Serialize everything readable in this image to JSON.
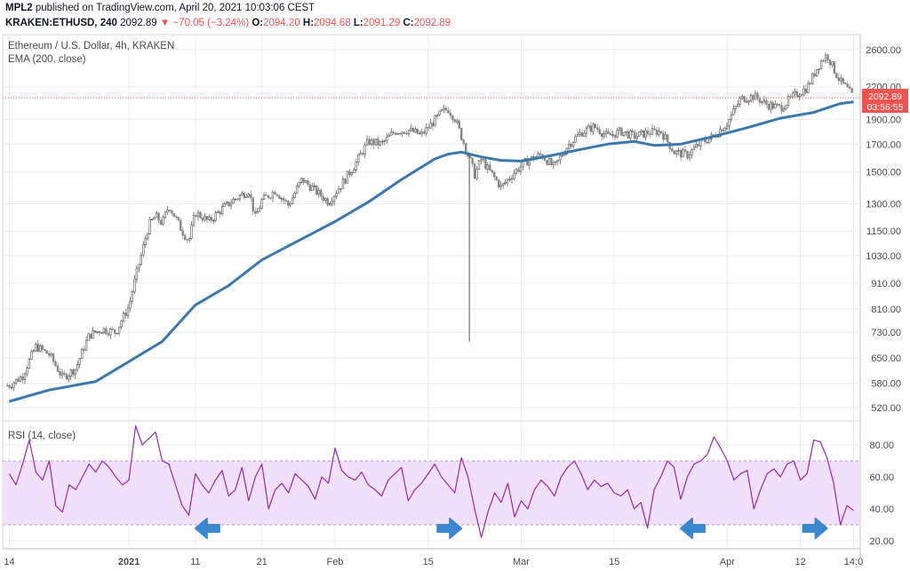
{
  "header": {
    "publisher": "MPL2",
    "published_text": "published on TradingView.com, April 20, 2021 10:03:06 CEST",
    "symbol": "KRAKEN:ETHUSD, 240",
    "last": "2092.89",
    "change": "−70.05 (−3.24%)",
    "o_label": "O:",
    "o_value": "2094.20",
    "h_label": "H:",
    "h_value": "2094.68",
    "l_label": "L:",
    "l_value": "2091.29",
    "c_label": "C:",
    "c_value": "2092.89"
  },
  "price_pane": {
    "title": "Ethereum / U.S. Dollar, 4h, KRAKEN",
    "indicator": "EMA (200, close)",
    "current_price": "2092.89",
    "countdown": "03:56:55"
  },
  "rsi_pane": {
    "title": "RSI (14, close)"
  },
  "colors": {
    "ema": "#3a78ad",
    "rsi": "#9c27b0",
    "rsi_band": "#f0e0fb",
    "up": "#26a69a",
    "down": "#ef5350",
    "candle": "#555555",
    "arrow": "#3a86cf",
    "grid": "#ececec"
  },
  "chart_data": [
    {
      "type": "line",
      "title": "Ethereum / U.S. Dollar, 4h, KRAKEN",
      "scale": "log",
      "ylim": [
        490,
        2780
      ],
      "y_ticks": [
        "520.00",
        "580.00",
        "650.00",
        "730.00",
        "810.00",
        "910.00",
        "1030.00",
        "1150.00",
        "1300.00",
        "1500.00",
        "1700.00",
        "1900.00",
        "2200.00",
        "2600.00"
      ],
      "x_ticks": [
        "14",
        "2021",
        "11",
        "21",
        "Feb",
        "15",
        "Mar",
        "15",
        "Apr",
        "12",
        "14:0"
      ],
      "x_tick_days": [
        -18,
        0,
        10,
        20,
        31,
        45,
        59,
        73,
        90,
        101,
        109
      ],
      "series": [
        {
          "name": "EMA (200, close)",
          "x_days": [
            -18,
            -12,
            -5,
            0,
            5,
            10,
            15,
            20,
            26,
            31,
            36,
            41,
            46,
            48,
            50,
            53,
            56,
            59,
            63,
            68,
            72,
            76,
            79,
            83,
            88,
            93,
            98,
            103,
            107,
            109
          ],
          "values": [
            535,
            563,
            585,
            640,
            700,
            825,
            900,
            1010,
            1110,
            1200,
            1310,
            1450,
            1590,
            1625,
            1640,
            1605,
            1580,
            1575,
            1610,
            1660,
            1700,
            1720,
            1690,
            1700,
            1760,
            1830,
            1910,
            1960,
            2040,
            2055
          ]
        },
        {
          "name": "ETHUSD",
          "x_days": [
            -18,
            -16,
            -14,
            -12,
            -10,
            -8,
            -6,
            -4,
            -2,
            0,
            2,
            3,
            4,
            5,
            6,
            7,
            8,
            9,
            10,
            12,
            14,
            16,
            18,
            19,
            20,
            22,
            24,
            26,
            28,
            30,
            32,
            34,
            36,
            38,
            40,
            42,
            44,
            46,
            47,
            48,
            49,
            50,
            51,
            52,
            53,
            54,
            56,
            58,
            60,
            62,
            64,
            66,
            68,
            70,
            72,
            74,
            76,
            78,
            80,
            82,
            84,
            86,
            88,
            90,
            92,
            94,
            96,
            98,
            100,
            102,
            103,
            104,
            105,
            106,
            107,
            108,
            109
          ],
          "values": [
            575,
            600,
            685,
            660,
            595,
            620,
            720,
            740,
            730,
            820,
            1050,
            1180,
            1230,
            1190,
            1290,
            1220,
            1150,
            1100,
            1250,
            1200,
            1270,
            1330,
            1380,
            1220,
            1320,
            1380,
            1290,
            1450,
            1380,
            1310,
            1420,
            1550,
            1720,
            1700,
            1800,
            1810,
            1770,
            1890,
            1960,
            1990,
            1910,
            1760,
            1620,
            1480,
            1590,
            1520,
            1400,
            1500,
            1580,
            1620,
            1530,
            1690,
            1790,
            1840,
            1760,
            1800,
            1760,
            1790,
            1800,
            1640,
            1620,
            1710,
            1760,
            1870,
            2080,
            2110,
            2030,
            2000,
            2110,
            2190,
            2320,
            2460,
            2540,
            2380,
            2250,
            2180,
            2093
          ]
        }
      ]
    },
    {
      "type": "line",
      "title": "RSI (14, close)",
      "ylim": [
        15,
        95
      ],
      "y_ticks": [
        "20.00",
        "40.00",
        "60.00",
        "80.00"
      ],
      "band": [
        30,
        70
      ],
      "series": [
        {
          "name": "RSI (14, close)",
          "x_days": [
            -18,
            -17,
            -16,
            -15,
            -14,
            -13,
            -12,
            -11,
            -10,
            -9,
            -8,
            -7,
            -6,
            -5,
            -4,
            -3,
            -2,
            -1,
            0,
            1,
            2,
            3,
            4,
            5,
            6,
            7,
            8,
            9,
            10,
            11,
            12,
            13,
            14,
            15,
            16,
            17,
            18,
            19,
            20,
            21,
            22,
            23,
            24,
            25,
            26,
            27,
            28,
            29,
            30,
            31,
            32,
            33,
            34,
            35,
            36,
            37,
            38,
            39,
            40,
            41,
            42,
            43,
            44,
            45,
            46,
            47,
            48,
            49,
            50,
            51,
            52,
            53,
            54,
            55,
            56,
            57,
            58,
            59,
            60,
            61,
            62,
            63,
            64,
            65,
            66,
            67,
            68,
            69,
            70,
            71,
            72,
            73,
            74,
            75,
            76,
            77,
            78,
            79,
            80,
            81,
            82,
            83,
            84,
            85,
            86,
            87,
            88,
            89,
            90,
            91,
            92,
            93,
            94,
            95,
            96,
            97,
            98,
            99,
            100,
            101,
            102,
            103,
            104,
            105,
            106,
            107,
            108,
            109
          ],
          "values": [
            62,
            55,
            68,
            83,
            63,
            58,
            70,
            42,
            38,
            55,
            52,
            60,
            68,
            63,
            70,
            66,
            60,
            55,
            58,
            92,
            80,
            84,
            88,
            70,
            68,
            55,
            42,
            36,
            62,
            55,
            50,
            58,
            64,
            48,
            52,
            66,
            45,
            60,
            68,
            40,
            52,
            56,
            50,
            62,
            58,
            54,
            46,
            60,
            56,
            78,
            64,
            60,
            58,
            63,
            55,
            52,
            48,
            58,
            62,
            66,
            45,
            52,
            56,
            62,
            68,
            60,
            55,
            50,
            72,
            60,
            40,
            22,
            38,
            50,
            44,
            56,
            35,
            45,
            40,
            52,
            58,
            54,
            48,
            60,
            66,
            70,
            62,
            52,
            58,
            54,
            56,
            50,
            48,
            52,
            40,
            44,
            28,
            52,
            60,
            70,
            66,
            46,
            60,
            68,
            70,
            74,
            85,
            78,
            70,
            58,
            62,
            64,
            40,
            52,
            62,
            65,
            60,
            68,
            70,
            58,
            62,
            83,
            82,
            72,
            56,
            30,
            42,
            39
          ]
        }
      ]
    }
  ]
}
